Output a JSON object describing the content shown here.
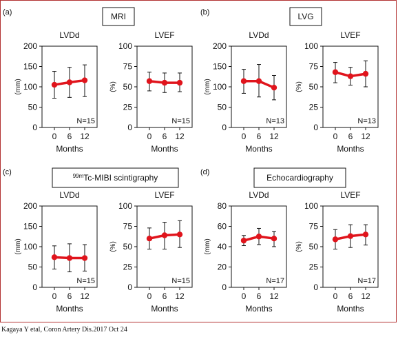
{
  "citation": "Kagaya Y etal, Coron Artery Dis.2017 Oct 24",
  "months_label": "Months",
  "panels": [
    {
      "label": "(a)",
      "box_title": "MRI",
      "sup": ""
    },
    {
      "label": "(b)",
      "box_title": "LVG",
      "sup": ""
    },
    {
      "label": "(c)",
      "box_title": "Tc-MIBI scintigraphy",
      "sup": "99m"
    },
    {
      "label": "(d)",
      "box_title": "Echocardiography",
      "sup": ""
    }
  ],
  "chart_data": [
    {
      "type": "line",
      "panel": "(a)",
      "title": "LVDd",
      "ylabel": "(mm)",
      "xlabel": "Months",
      "x": [
        0,
        6,
        12
      ],
      "ylim": [
        0,
        200
      ],
      "yticks": [
        0,
        50,
        100,
        150,
        200
      ],
      "series": [
        {
          "values": [
            105,
            111,
            116
          ],
          "lower": [
            72,
            74,
            76
          ],
          "upper": [
            138,
            148,
            154
          ]
        }
      ],
      "annotation": "N=15",
      "color": "#e0141c"
    },
    {
      "type": "line",
      "panel": "(a)",
      "title": "LVEF",
      "ylabel": "(%)",
      "xlabel": "Months",
      "x": [
        0,
        6,
        12
      ],
      "ylim": [
        0,
        100
      ],
      "yticks": [
        0,
        25,
        50,
        75,
        100
      ],
      "series": [
        {
          "values": [
            57,
            55,
            55
          ],
          "lower": [
            45,
            43,
            44
          ],
          "upper": [
            68,
            67,
            67
          ]
        }
      ],
      "annotation": "N=15",
      "color": "#e0141c"
    },
    {
      "type": "line",
      "panel": "(b)",
      "title": "LVDd",
      "ylabel": "(mm)",
      "xlabel": "Months",
      "x": [
        0,
        6,
        12
      ],
      "ylim": [
        0,
        200
      ],
      "yticks": [
        0,
        50,
        100,
        150,
        200
      ],
      "series": [
        {
          "values": [
            114,
            114,
            98
          ],
          "lower": [
            84,
            75,
            68
          ],
          "upper": [
            143,
            155,
            128
          ]
        }
      ],
      "annotation": "N=13",
      "color": "#e0141c"
    },
    {
      "type": "line",
      "panel": "(b)",
      "title": "LVEF",
      "ylabel": "(%)",
      "xlabel": "Months",
      "x": [
        0,
        6,
        12
      ],
      "ylim": [
        0,
        100
      ],
      "yticks": [
        0,
        25,
        50,
        75,
        100
      ],
      "series": [
        {
          "values": [
            68,
            63,
            66
          ],
          "lower": [
            55,
            52,
            50
          ],
          "upper": [
            80,
            74,
            82
          ]
        }
      ],
      "annotation": "N=13",
      "color": "#e0141c"
    },
    {
      "type": "line",
      "panel": "(c)",
      "title": "LVDd",
      "ylabel": "(mm)",
      "xlabel": "Months",
      "x": [
        0,
        6,
        12
      ],
      "ylim": [
        0,
        200
      ],
      "yticks": [
        0,
        50,
        100,
        150,
        200
      ],
      "series": [
        {
          "values": [
            74,
            72,
            72
          ],
          "lower": [
            45,
            38,
            40
          ],
          "upper": [
            102,
            107,
            105
          ]
        }
      ],
      "annotation": "N=15",
      "color": "#e0141c"
    },
    {
      "type": "line",
      "panel": "(c)",
      "title": "LVEF",
      "ylabel": "(%)",
      "xlabel": "Months",
      "x": [
        0,
        6,
        12
      ],
      "ylim": [
        0,
        100
      ],
      "yticks": [
        0,
        25,
        50,
        75,
        100
      ],
      "series": [
        {
          "values": [
            60,
            64,
            65
          ],
          "lower": [
            47,
            47,
            49
          ],
          "upper": [
            73,
            80,
            82
          ]
        }
      ],
      "annotation": "N=15",
      "color": "#e0141c"
    },
    {
      "type": "line",
      "panel": "(d)",
      "title": "LVDd",
      "ylabel": "(mm)",
      "xlabel": "Months",
      "x": [
        0,
        6,
        12
      ],
      "ylim": [
        0,
        80
      ],
      "yticks": [
        0,
        20,
        40,
        60,
        80
      ],
      "series": [
        {
          "values": [
            46,
            50,
            48
          ],
          "lower": [
            41,
            42,
            40
          ],
          "upper": [
            51,
            58,
            55
          ]
        }
      ],
      "annotation": "N=17",
      "color": "#e0141c"
    },
    {
      "type": "line",
      "panel": "(d)",
      "title": "LVEF",
      "ylabel": "(%)",
      "xlabel": "Months",
      "x": [
        0,
        6,
        12
      ],
      "ylim": [
        0,
        100
      ],
      "yticks": [
        0,
        25,
        50,
        75,
        100
      ],
      "series": [
        {
          "values": [
            59,
            63,
            65
          ],
          "lower": [
            47,
            49,
            52
          ],
          "upper": [
            71,
            77,
            77
          ]
        }
      ],
      "annotation": "N=17",
      "color": "#e0141c"
    }
  ]
}
